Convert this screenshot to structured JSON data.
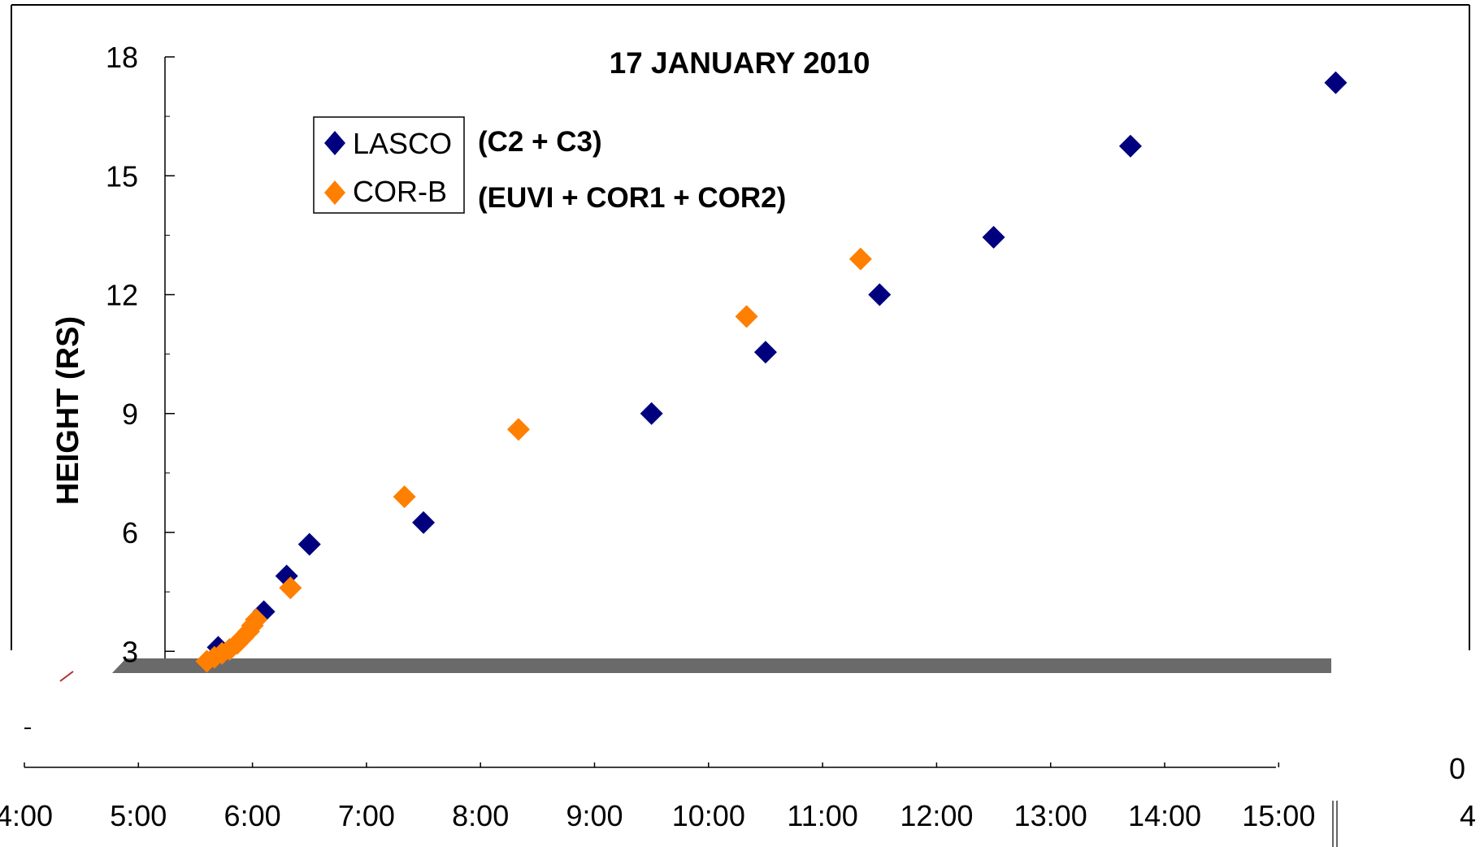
{
  "chart_data": {
    "type": "scatter",
    "title": "17 JANUARY 2010",
    "xlabel": "",
    "ylabel": "HEIGHT (RS)",
    "xlim": [
      "4:00",
      "15:30"
    ],
    "ylim": [
      2.5,
      19
    ],
    "x_ticks": [
      "4:00",
      "5:00",
      "6:00",
      "7:00",
      "8:00",
      "9:00",
      "10:00",
      "11:00",
      "12:00",
      "13:00",
      "14:00",
      "15:00"
    ],
    "y_ticks": [
      3,
      6,
      9,
      12,
      15,
      18
    ],
    "grid": false,
    "legend_position": "top-left",
    "legend_notes": [
      "(C2 + C3)",
      "(EUVI + COR1 + COR2)"
    ],
    "right_axis_fragments": [
      "0",
      "4"
    ],
    "series": [
      {
        "name": "LASCO",
        "color": "#00007f",
        "marker": "diamond",
        "points": [
          [
            "5:42",
            3.1
          ],
          [
            "6:06",
            4.0
          ],
          [
            "6:18",
            4.9
          ],
          [
            "6:30",
            5.7
          ],
          [
            "7:30",
            6.25
          ],
          [
            "9:30",
            9.0
          ],
          [
            "10:30",
            10.55
          ],
          [
            "11:30",
            12.0
          ],
          [
            "12:30",
            13.45
          ],
          [
            "13:42",
            15.75
          ],
          [
            "15:30",
            17.35
          ]
        ]
      },
      {
        "name": "COR-B",
        "color": "#ff7f00",
        "marker": "diamond",
        "points": [
          [
            "5:36",
            2.75
          ],
          [
            "5:40",
            2.85
          ],
          [
            "5:44",
            2.95
          ],
          [
            "5:48",
            3.05
          ],
          [
            "5:52",
            3.2
          ],
          [
            "5:55",
            3.35
          ],
          [
            "5:58",
            3.5
          ],
          [
            "6:00",
            3.65
          ],
          [
            "6:02",
            3.8
          ],
          [
            "6:20",
            4.6
          ],
          [
            "7:20",
            6.9
          ],
          [
            "8:20",
            8.6
          ],
          [
            "10:20",
            11.45
          ],
          [
            "11:20",
            12.9
          ]
        ]
      }
    ]
  }
}
